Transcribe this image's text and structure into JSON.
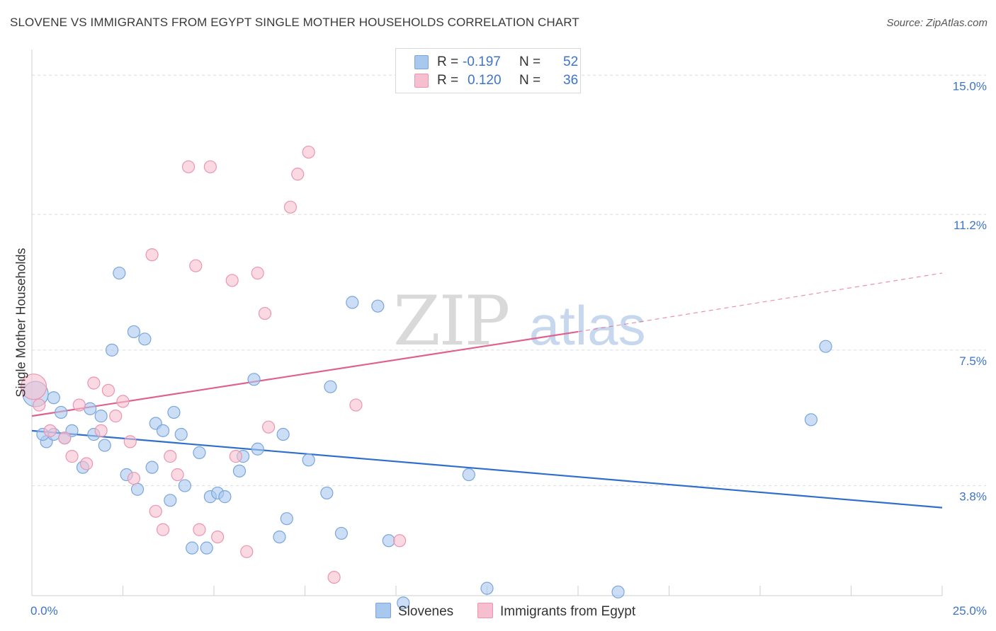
{
  "title": "SLOVENE VS IMMIGRANTS FROM EGYPT SINGLE MOTHER HOUSEHOLDS CORRELATION CHART",
  "source": "Source: ZipAtlas.com",
  "watermark": {
    "zip": "ZIP",
    "atlas": "atlas"
  },
  "legend": {
    "rows": [
      {
        "r_label": "R =",
        "r_value": "-0.197",
        "n_label": "N =",
        "n_value": "52"
      },
      {
        "r_label": "R =",
        "r_value": "0.120",
        "n_label": "N =",
        "n_value": "36"
      }
    ]
  },
  "colors": {
    "blue_fill": "#a9c8ee",
    "blue_stroke": "#7aa6dc",
    "blue_line": "#2e6fcb",
    "pink_fill": "#f6bfd0",
    "pink_stroke": "#eb95b1",
    "pink_line": "#e0608e",
    "tick_label": "#3d74c8",
    "grid": "#dcdcdc"
  },
  "chart_data": {
    "type": "scatter",
    "title": "SLOVENE VS IMMIGRANTS FROM EGYPT SINGLE MOTHER HOUSEHOLDS CORRELATION CHART",
    "xlabel": "",
    "ylabel": "Single Mother Households",
    "xlim": [
      0,
      25
    ],
    "ylim": [
      0.8,
      15.7
    ],
    "x_tick_labels": [
      "0.0%",
      "25.0%"
    ],
    "y_ticks": [
      3.8,
      7.5,
      11.2,
      15.0
    ],
    "y_tick_labels": [
      "3.8%",
      "7.5%",
      "11.2%",
      "15.0%"
    ],
    "grid": "horizontal dashed",
    "legend_placement": "top-center",
    "series": [
      {
        "name": "Slovenes",
        "color": "#a9c8ee",
        "points": [
          [
            0.1,
            6.3
          ],
          [
            0.4,
            5.0
          ],
          [
            0.6,
            5.2
          ],
          [
            0.6,
            6.2
          ],
          [
            0.8,
            5.8
          ],
          [
            0.9,
            5.1
          ],
          [
            1.1,
            5.3
          ],
          [
            1.4,
            4.3
          ],
          [
            1.6,
            5.9
          ],
          [
            1.7,
            5.2
          ],
          [
            1.9,
            5.7
          ],
          [
            2.0,
            4.9
          ],
          [
            2.2,
            7.5
          ],
          [
            2.4,
            9.6
          ],
          [
            2.6,
            4.1
          ],
          [
            2.8,
            8.0
          ],
          [
            2.9,
            3.7
          ],
          [
            3.1,
            7.8
          ],
          [
            3.3,
            4.3
          ],
          [
            3.4,
            5.5
          ],
          [
            3.6,
            5.3
          ],
          [
            3.8,
            3.4
          ],
          [
            3.9,
            5.8
          ],
          [
            4.1,
            5.2
          ],
          [
            4.2,
            3.8
          ],
          [
            4.4,
            2.1
          ],
          [
            4.6,
            4.7
          ],
          [
            4.8,
            2.1
          ],
          [
            4.9,
            3.5
          ],
          [
            5.1,
            3.6
          ],
          [
            5.3,
            3.5
          ],
          [
            5.7,
            4.2
          ],
          [
            5.8,
            4.6
          ],
          [
            6.1,
            6.7
          ],
          [
            6.2,
            4.8
          ],
          [
            6.8,
            2.4
          ],
          [
            6.9,
            5.2
          ],
          [
            7.0,
            2.9
          ],
          [
            7.6,
            4.5
          ],
          [
            8.1,
            3.6
          ],
          [
            8.2,
            6.5
          ],
          [
            8.5,
            2.5
          ],
          [
            8.8,
            8.8
          ],
          [
            9.5,
            8.7
          ],
          [
            9.8,
            2.3
          ],
          [
            10.2,
            0.6
          ],
          [
            12.0,
            4.1
          ],
          [
            12.5,
            1.0
          ],
          [
            16.1,
            0.9
          ],
          [
            21.4,
            5.6
          ],
          [
            21.8,
            7.6
          ],
          [
            0.3,
            5.2
          ]
        ]
      },
      {
        "name": "Immigrants from Egypt",
        "color": "#f6bfd0",
        "points": [
          [
            0.05,
            6.5
          ],
          [
            0.2,
            6.0
          ],
          [
            0.5,
            5.3
          ],
          [
            0.9,
            5.1
          ],
          [
            1.1,
            4.6
          ],
          [
            1.3,
            6.0
          ],
          [
            1.5,
            4.4
          ],
          [
            1.7,
            6.6
          ],
          [
            1.9,
            5.3
          ],
          [
            2.1,
            6.4
          ],
          [
            2.3,
            5.7
          ],
          [
            2.5,
            6.1
          ],
          [
            2.7,
            5.0
          ],
          [
            2.8,
            4.0
          ],
          [
            3.3,
            10.1
          ],
          [
            3.4,
            3.1
          ],
          [
            3.6,
            2.6
          ],
          [
            3.8,
            4.6
          ],
          [
            4.0,
            4.1
          ],
          [
            4.3,
            12.5
          ],
          [
            4.5,
            9.8
          ],
          [
            4.6,
            2.6
          ],
          [
            4.9,
            12.5
          ],
          [
            5.1,
            2.4
          ],
          [
            5.5,
            9.4
          ],
          [
            5.6,
            4.6
          ],
          [
            5.9,
            2.0
          ],
          [
            6.2,
            9.6
          ],
          [
            6.4,
            8.5
          ],
          [
            6.5,
            5.4
          ],
          [
            7.1,
            11.4
          ],
          [
            7.3,
            12.3
          ],
          [
            7.6,
            12.9
          ],
          [
            8.3,
            1.3
          ],
          [
            8.9,
            6.0
          ],
          [
            10.1,
            2.3
          ]
        ]
      }
    ],
    "trend_lines": [
      {
        "series": "Slovenes",
        "x": [
          0,
          25
        ],
        "y": [
          5.3,
          3.2
        ],
        "style": "solid"
      },
      {
        "series": "Immigrants from Egypt",
        "solid_x": [
          0,
          15
        ],
        "solid_y": [
          5.7,
          8.0
        ],
        "dashed_x": [
          15,
          25
        ],
        "dashed_y": [
          8.0,
          9.6
        ]
      }
    ]
  },
  "bottom_legend": [
    {
      "label": "Slovenes"
    },
    {
      "label": "Immigrants from Egypt"
    }
  ]
}
